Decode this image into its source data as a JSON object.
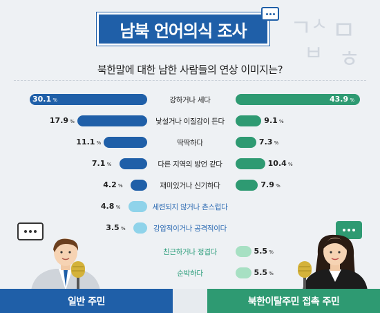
{
  "header": {
    "title": "남북 언어의식 조사",
    "subtitle": "북한말에 대한 남한 사람들의 연상 이미지는?"
  },
  "footer": {
    "left_label": "일반 주민",
    "right_label": "북한이탈주민 접촉 주민"
  },
  "colors": {
    "primary_blue": "#1f5fa8",
    "light_blue": "#8fd3ea",
    "primary_green": "#2e9a72",
    "light_green": "#a7e0c3",
    "background": "#eef1f4"
  },
  "chart_data": {
    "type": "bar",
    "title": "북한말에 대한 남한 사람들의 연상 이미지는?",
    "unit": "%",
    "categories": [
      "강하거나 세다",
      "낯설거나 이질감이 든다",
      "딱딱하다",
      "다른 지역의 방언 같다",
      "재미있거나 신기하다",
      "세련되지 않거나 촌스럽다",
      "강압적이거나 공격적이다",
      "친근하거나 정겹다",
      "순박하다"
    ],
    "series": [
      {
        "name": "일반 주민",
        "values": [
          30.1,
          17.9,
          11.1,
          7.1,
          4.2,
          4.8,
          3.5,
          null,
          null
        ]
      },
      {
        "name": "북한이탈주민 접촉 주민",
        "values": [
          43.9,
          9.1,
          7.3,
          10.4,
          7.9,
          null,
          null,
          5.5,
          5.5
        ]
      }
    ]
  }
}
